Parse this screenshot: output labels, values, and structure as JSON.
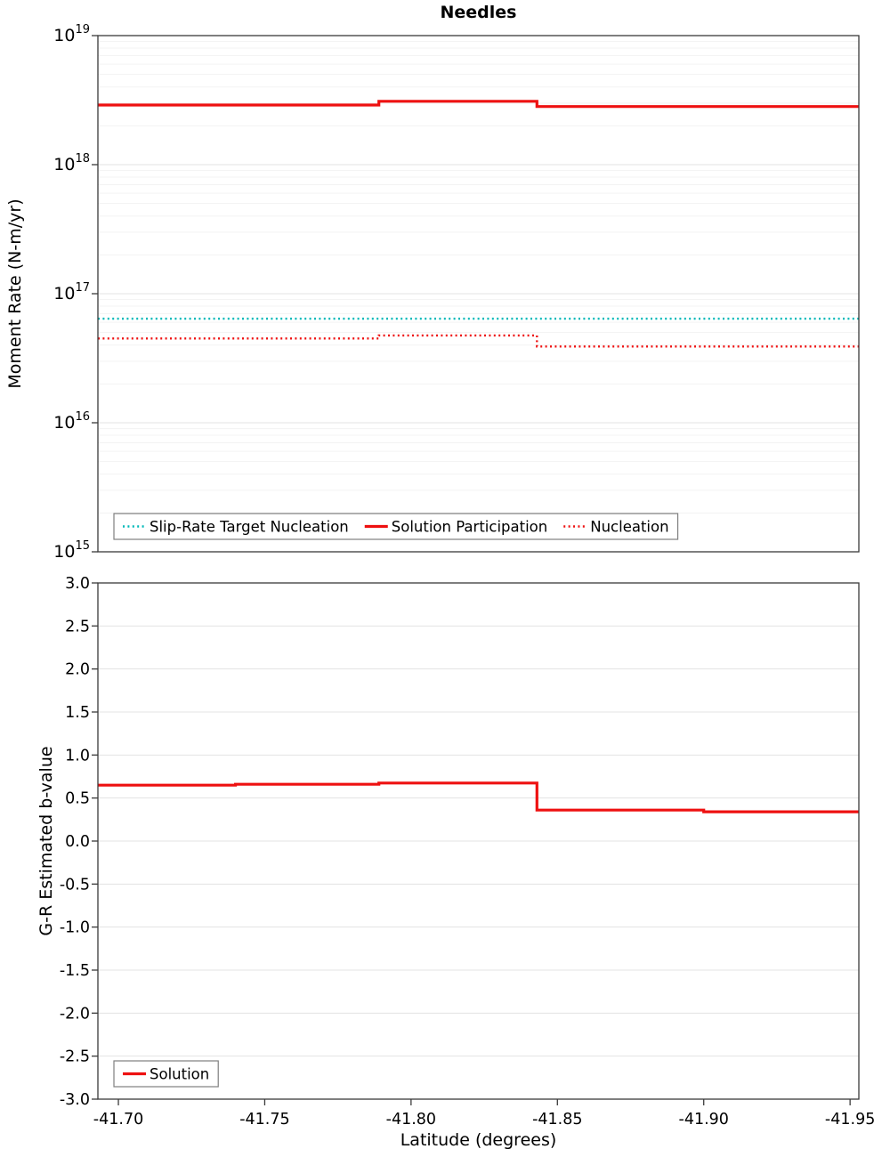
{
  "page": {
    "title": "Needles"
  },
  "chart_data": [
    {
      "type": "line",
      "panel": "moment-rate",
      "title": "Needles",
      "ylabel": "Moment Rate (N-m/yr)",
      "yscale": "log",
      "ylim": [
        1000000000000000.0,
        1e+19
      ],
      "xlim": [
        -41.693,
        -41.953
      ],
      "x_reversed": true,
      "grid": true,
      "legend_position": "bottom-left",
      "yticks": [
        {
          "v": 1000000000000000.0,
          "exp": "15"
        },
        {
          "v": 1e+16,
          "exp": "16"
        },
        {
          "v": 1e+17,
          "exp": "17"
        },
        {
          "v": 1e+18,
          "exp": "18"
        },
        {
          "v": 1e+19,
          "exp": "19"
        }
      ],
      "series": [
        {
          "name": "Slip-Rate Target Nucleation",
          "color": "#00b8b8",
          "style": "dotted",
          "points": [
            [
              -41.693,
              6.4e+16
            ],
            [
              -41.953,
              6.4e+16
            ]
          ]
        },
        {
          "name": "Solution Participation",
          "color": "#ee1111",
          "style": "solid",
          "points": [
            [
              -41.693,
              2.9e+18
            ],
            [
              -41.789,
              2.9e+18
            ],
            [
              -41.789,
              3.1e+18
            ],
            [
              -41.843,
              3.1e+18
            ],
            [
              -41.843,
              2.82e+18
            ],
            [
              -41.953,
              2.82e+18
            ]
          ]
        },
        {
          "name": "Nucleation",
          "color": "#ee1111",
          "style": "dotted",
          "points": [
            [
              -41.693,
              4.5e+16
            ],
            [
              -41.789,
              4.5e+16
            ],
            [
              -41.789,
              4.75e+16
            ],
            [
              -41.843,
              4.75e+16
            ],
            [
              -41.843,
              3.9e+16
            ],
            [
              -41.953,
              3.9e+16
            ]
          ]
        }
      ]
    },
    {
      "type": "line",
      "panel": "b-value",
      "ylabel": "G-R Estimated b-value",
      "xlabel": "Latitude (degrees)",
      "yscale": "linear",
      "ylim": [
        -3.0,
        3.0
      ],
      "xlim": [
        -41.693,
        -41.953
      ],
      "x_reversed": true,
      "grid": true,
      "legend_position": "bottom-left",
      "yticks": [
        -3,
        -2.5,
        -2,
        -1.5,
        -1,
        -0.5,
        0,
        0.5,
        1,
        1.5,
        2,
        2.5,
        3
      ],
      "ytick_labels": [
        "-3.0",
        "-2.5",
        "-2.0",
        "-1.5",
        "-1.0",
        "-0.5",
        "0.0",
        "0.5",
        "1.0",
        "1.5",
        "2.0",
        "2.5",
        "3.0"
      ],
      "xticks": [
        -41.7,
        -41.75,
        -41.8,
        -41.85,
        -41.9,
        -41.95
      ],
      "xtick_labels": [
        "-41.70",
        "-41.75",
        "-41.80",
        "-41.85",
        "-41.90",
        "-41.95"
      ],
      "series": [
        {
          "name": "Solution",
          "color": "#ee1111",
          "style": "solid",
          "points": [
            [
              -41.693,
              0.65
            ],
            [
              -41.74,
              0.65
            ],
            [
              -41.74,
              0.66
            ],
            [
              -41.789,
              0.66
            ],
            [
              -41.789,
              0.675
            ],
            [
              -41.843,
              0.675
            ],
            [
              -41.843,
              0.36
            ],
            [
              -41.9,
              0.36
            ],
            [
              -41.9,
              0.34
            ],
            [
              -41.953,
              0.34
            ]
          ]
        }
      ]
    }
  ]
}
